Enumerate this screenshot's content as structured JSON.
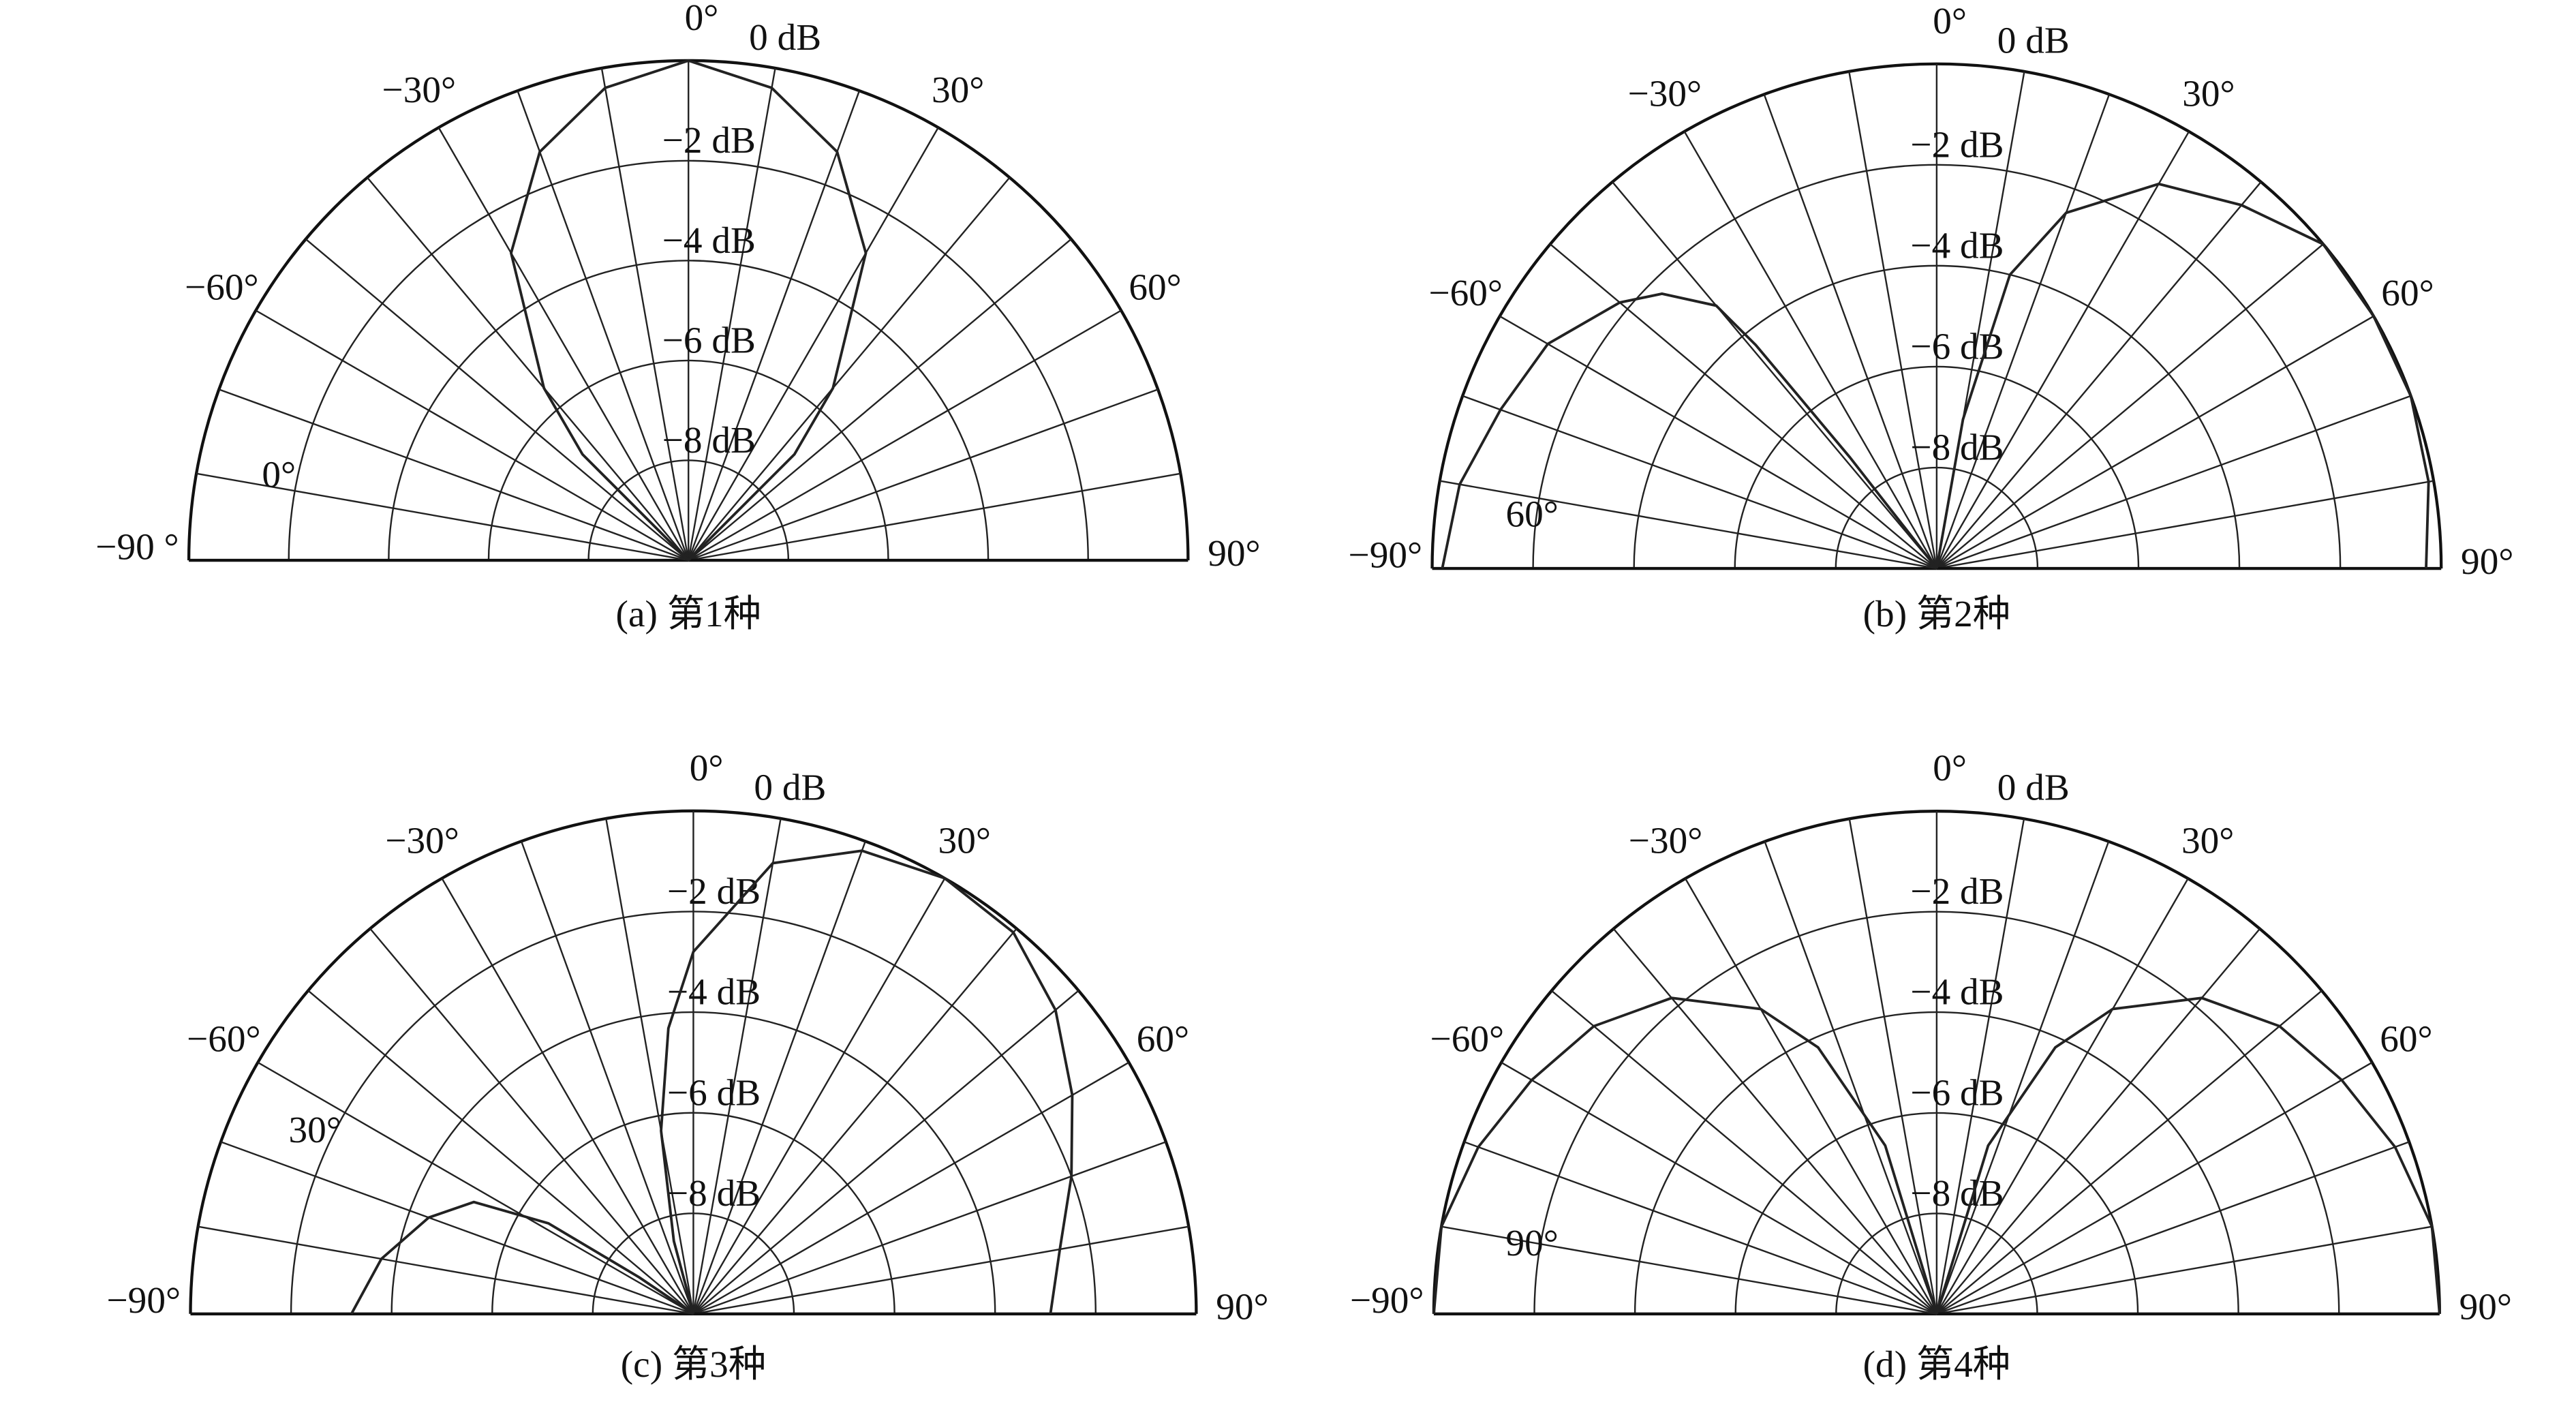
{
  "chart_data": [
    {
      "type": "polar",
      "caption": "(a) 第1种",
      "annotation": "0°",
      "thetalim": [
        -90,
        90
      ],
      "thetaticks": [
        {
          "value": -90,
          "label": "−90 °"
        },
        {
          "value": -60,
          "label": "−60°"
        },
        {
          "value": -30,
          "label": "−30°"
        },
        {
          "value": 0,
          "label": "0°"
        },
        {
          "value": 30,
          "label": "30°"
        },
        {
          "value": 60,
          "label": "60°"
        },
        {
          "value": 90,
          "label": "90°"
        }
      ],
      "thetagrid": [
        -90,
        -80,
        -70,
        -60,
        -50,
        -40,
        -30,
        -20,
        -10,
        0,
        10,
        20,
        30,
        40,
        50,
        60,
        70,
        80,
        90
      ],
      "rlim": [
        -10,
        0
      ],
      "rticks": [
        {
          "value": 0,
          "label": "0 dB"
        },
        {
          "value": -2,
          "label": "−2 dB"
        },
        {
          "value": -4,
          "label": "−4 dB"
        },
        {
          "value": -6,
          "label": "−6 dB"
        },
        {
          "value": -8,
          "label": "−8 dB"
        }
      ],
      "series": [
        {
          "color": "#222222",
          "theta": [
            -50,
            -45,
            -40,
            -30,
            -20,
            -10,
            0,
            10,
            20,
            30,
            40,
            45,
            50
          ],
          "values": [
            -10,
            -7,
            -5.5,
            -2.9,
            -1.3,
            -0.4,
            0,
            -0.4,
            -1.3,
            -2.9,
            -5.5,
            -7,
            -10
          ]
        }
      ]
    },
    {
      "type": "polar",
      "caption": "(b) 第2种",
      "annotation": "60°",
      "thetalim": [
        -90,
        90
      ],
      "thetaticks": [
        {
          "value": -90,
          "label": "−90°"
        },
        {
          "value": -60,
          "label": "−60°"
        },
        {
          "value": -30,
          "label": "−30°"
        },
        {
          "value": 0,
          "label": "0°"
        },
        {
          "value": 30,
          "label": "30°"
        },
        {
          "value": 60,
          "label": "60°"
        },
        {
          "value": 90,
          "label": "90°"
        }
      ],
      "thetagrid": [
        -90,
        -80,
        -70,
        -60,
        -50,
        -40,
        -30,
        -20,
        -10,
        0,
        10,
        20,
        30,
        40,
        50,
        60,
        70,
        80,
        90
      ],
      "rlim": [
        -10,
        0
      ],
      "rticks": [
        {
          "value": 0,
          "label": "0 dB"
        },
        {
          "value": -2,
          "label": "−2 dB"
        },
        {
          "value": -4,
          "label": "−4 dB"
        },
        {
          "value": -6,
          "label": "−6 dB"
        },
        {
          "value": -8,
          "label": "−8 dB"
        }
      ],
      "series": [
        {
          "color": "#222222",
          "theta": [
            -90,
            -80,
            -70,
            -60,
            -50,
            -45,
            -40,
            -39,
            -38,
            -37,
            -20,
            8,
            10,
            14,
            20,
            30,
            40,
            50,
            60,
            70,
            80,
            90
          ],
          "values": [
            -0.2,
            -0.4,
            -0.8,
            -1.1,
            -1.8,
            -2.3,
            -3.2,
            -4.3,
            -7.2,
            -10,
            null,
            -10,
            -7,
            -4,
            -2.5,
            -1.2,
            -0.6,
            0,
            0,
            0,
            -0.1,
            -0.3
          ]
        }
      ]
    },
    {
      "type": "polar",
      "caption": "(c) 第3种",
      "annotation": "30°",
      "thetalim": [
        -90,
        90
      ],
      "thetaticks": [
        {
          "value": -90,
          "label": "−90°"
        },
        {
          "value": -60,
          "label": "−60°"
        },
        {
          "value": -30,
          "label": "−30°"
        },
        {
          "value": 0,
          "label": "0°"
        },
        {
          "value": 30,
          "label": "30°"
        },
        {
          "value": 60,
          "label": "60°"
        },
        {
          "value": 90,
          "label": "90°"
        }
      ],
      "thetagrid": [
        -90,
        -80,
        -70,
        -60,
        -50,
        -40,
        -30,
        -20,
        -10,
        0,
        10,
        20,
        30,
        40,
        50,
        60,
        70,
        80,
        90
      ],
      "rlim": [
        -10,
        0
      ],
      "rticks": [
        {
          "value": 0,
          "label": "0 dB"
        },
        {
          "value": -2,
          "label": "−2 dB"
        },
        {
          "value": -4,
          "label": "−4 dB"
        },
        {
          "value": -6,
          "label": "−6 dB"
        },
        {
          "value": -8,
          "label": "−8 dB"
        }
      ],
      "series": [
        {
          "color": "#222222",
          "theta": [
            -90,
            -80,
            -70,
            -63,
            -58,
            -56,
            -55,
            -40,
            -20,
            -15,
            -10,
            -5,
            0,
            10,
            20,
            30,
            40,
            50,
            60,
            70,
            80,
            90
          ],
          "values": [
            -3.2,
            -3.7,
            -4.4,
            -5.1,
            -6.6,
            -8.7,
            -10,
            null,
            -10,
            -8.5,
            -6.3,
            -4.3,
            -2.8,
            -0.9,
            -0.2,
            0,
            -0.1,
            -0.6,
            -1.3,
            -2,
            -2.6,
            -2.9
          ]
        }
      ]
    },
    {
      "type": "polar",
      "caption": "(d) 第4种",
      "annotation": "90°",
      "thetalim": [
        -90,
        90
      ],
      "thetaticks": [
        {
          "value": -90,
          "label": "−90°"
        },
        {
          "value": -60,
          "label": "−60°"
        },
        {
          "value": -30,
          "label": "−30°"
        },
        {
          "value": 0,
          "label": "0°"
        },
        {
          "value": 30,
          "label": "30°"
        },
        {
          "value": 60,
          "label": "60°"
        },
        {
          "value": 90,
          "label": "90°"
        }
      ],
      "thetagrid": [
        -90,
        -80,
        -70,
        -60,
        -50,
        -40,
        -30,
        -20,
        -10,
        0,
        10,
        20,
        30,
        40,
        50,
        60,
        70,
        80,
        90
      ],
      "rlim": [
        -10,
        0
      ],
      "rticks": [
        {
          "value": 0,
          "label": "0 dB"
        },
        {
          "value": -2,
          "label": "−2 dB"
        },
        {
          "value": -4,
          "label": "−4 dB"
        },
        {
          "value": -6,
          "label": "−6 dB"
        },
        {
          "value": -8,
          "label": "−8 dB"
        }
      ],
      "series": [
        {
          "color": "#222222",
          "theta": [
            -90,
            -80,
            -70,
            -60,
            -50,
            -40,
            -30,
            -24,
            -17,
            -12,
            0,
            12,
            17,
            24,
            30,
            40,
            50,
            60,
            70,
            80,
            90
          ],
          "values": [
            0,
            0,
            -0.3,
            -0.7,
            -1.1,
            -1.8,
            -3,
            -4.2,
            -6.5,
            -10,
            null,
            -10,
            -6.5,
            -4.2,
            -3,
            -1.8,
            -1.1,
            -0.7,
            -0.3,
            0,
            0
          ]
        }
      ]
    }
  ]
}
